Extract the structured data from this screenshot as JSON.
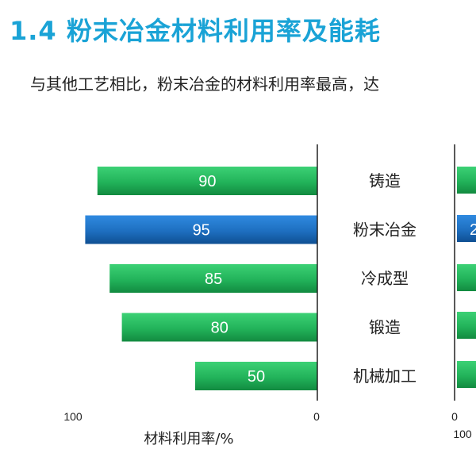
{
  "page": {
    "title": "1.4 粉末冶金材料利用率及能耗",
    "intro": "与其他工艺相比，粉末冶金的材料利用率最高，达"
  },
  "colors": {
    "title": "#1aa3d6",
    "green_bar": "#22b35a",
    "blue_bar": "#1e6fc0",
    "axis": "#222222"
  },
  "chart_data": {
    "type": "bar",
    "orientation": "horizontal",
    "direction": "right-to-left",
    "categories": [
      "铸造",
      "粉末冶金",
      "冷成型",
      "锻造",
      "机械加工"
    ],
    "values": [
      90,
      95,
      85,
      80,
      50
    ],
    "highlight": "粉末冶金",
    "xlabel": "材料利用率/%",
    "xlim": [
      100,
      0
    ],
    "xticks": [
      "100",
      "0"
    ],
    "legend": "none",
    "grid": false
  },
  "partial_chart": {
    "tick_labels": [
      "0",
      "100"
    ],
    "visible_value_fragment": "2"
  }
}
